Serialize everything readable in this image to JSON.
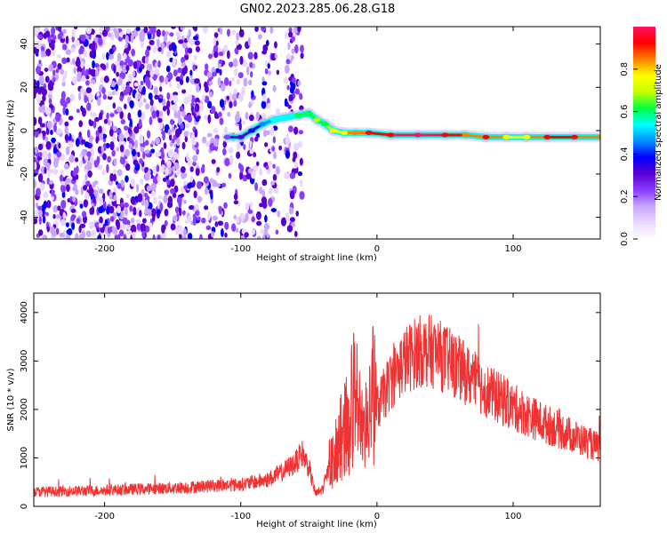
{
  "title": "GN02.2023.285.06.28.G18",
  "chart_data": [
    {
      "type": "heatmap",
      "xlabel": "Height of straight line (km)",
      "ylabel": "Frequency (Hz)",
      "xlim": [
        -252,
        164
      ],
      "ylim": [
        -50,
        48
      ],
      "xticks": [
        -200,
        -100,
        0,
        100
      ],
      "yticks": [
        -40,
        -20,
        0,
        20,
        40
      ],
      "colorbar": {
        "label": "Normalized spectral amplitude",
        "ticks": [
          0.0,
          0.2,
          0.4,
          0.6,
          0.8
        ],
        "range": [
          0,
          1
        ],
        "colormap": [
          "#ffffff",
          "#e8d8ff",
          "#c8a6ff",
          "#8a3cff",
          "#5a00d0",
          "#0000ff",
          "#0090ff",
          "#00ffff",
          "#00ff40",
          "#c8ff00",
          "#ffff00",
          "#ff8000",
          "#ff0000",
          "#ff1060"
        ]
      },
      "noise_region": {
        "x": [
          -252,
          -55
        ],
        "y": [
          -50,
          48
        ],
        "gap": [
          -72,
          -67
        ]
      },
      "signal_track": [
        {
          "x": -110,
          "y": -3,
          "a": 0.25
        },
        {
          "x": -100,
          "y": -3,
          "a": 0.3
        },
        {
          "x": -92,
          "y": 0,
          "a": 0.35
        },
        {
          "x": -84,
          "y": 3,
          "a": 0.45
        },
        {
          "x": -76,
          "y": 5,
          "a": 0.5
        },
        {
          "x": -68,
          "y": 6,
          "a": 0.55
        },
        {
          "x": -58,
          "y": 7,
          "a": 0.6
        },
        {
          "x": -50,
          "y": 8,
          "a": 0.6
        },
        {
          "x": -44,
          "y": 5,
          "a": 0.7
        },
        {
          "x": -38,
          "y": 3,
          "a": 0.6
        },
        {
          "x": -32,
          "y": 0,
          "a": 0.75
        },
        {
          "x": -24,
          "y": -1,
          "a": 0.8
        },
        {
          "x": -16,
          "y": -1,
          "a": 0.85
        },
        {
          "x": -6,
          "y": -1,
          "a": 0.9
        },
        {
          "x": 10,
          "y": -2,
          "a": 0.95
        },
        {
          "x": 30,
          "y": -2,
          "a": 0.98
        },
        {
          "x": 50,
          "y": -2,
          "a": 0.95
        },
        {
          "x": 65,
          "y": -2,
          "a": 0.85
        },
        {
          "x": 80,
          "y": -3,
          "a": 0.9
        },
        {
          "x": 95,
          "y": -3,
          "a": 0.8
        },
        {
          "x": 110,
          "y": -3,
          "a": 0.75
        },
        {
          "x": 125,
          "y": -3,
          "a": 0.9
        },
        {
          "x": 145,
          "y": -3,
          "a": 0.9
        },
        {
          "x": 164,
          "y": -3,
          "a": 0.85
        }
      ]
    },
    {
      "type": "line",
      "xlabel": "Height of straight line (km)",
      "ylabel": "SNR (10 * v/v)",
      "xlim": [
        -252,
        164
      ],
      "ylim": [
        0,
        4400
      ],
      "xticks": [
        -200,
        -100,
        0,
        100
      ],
      "yticks": [
        0,
        1000,
        2000,
        3000,
        4000
      ],
      "series_color": "#f03232",
      "x": [
        -252,
        -200,
        -150,
        -100,
        -80,
        -70,
        -60,
        -55,
        -50,
        -45,
        -40,
        -35,
        -30,
        -25,
        -20,
        -15,
        -10,
        -5,
        0,
        5,
        10,
        20,
        30,
        40,
        50,
        60,
        80,
        100,
        120,
        140,
        164
      ],
      "y": [
        300,
        330,
        380,
        450,
        550,
        700,
        900,
        1100,
        800,
        250,
        350,
        800,
        1200,
        1500,
        1800,
        2600,
        1200,
        2500,
        2000,
        2300,
        2600,
        3000,
        3200,
        3200,
        3050,
        2850,
        2400,
        2050,
        1750,
        1500,
        1200
      ]
    }
  ]
}
